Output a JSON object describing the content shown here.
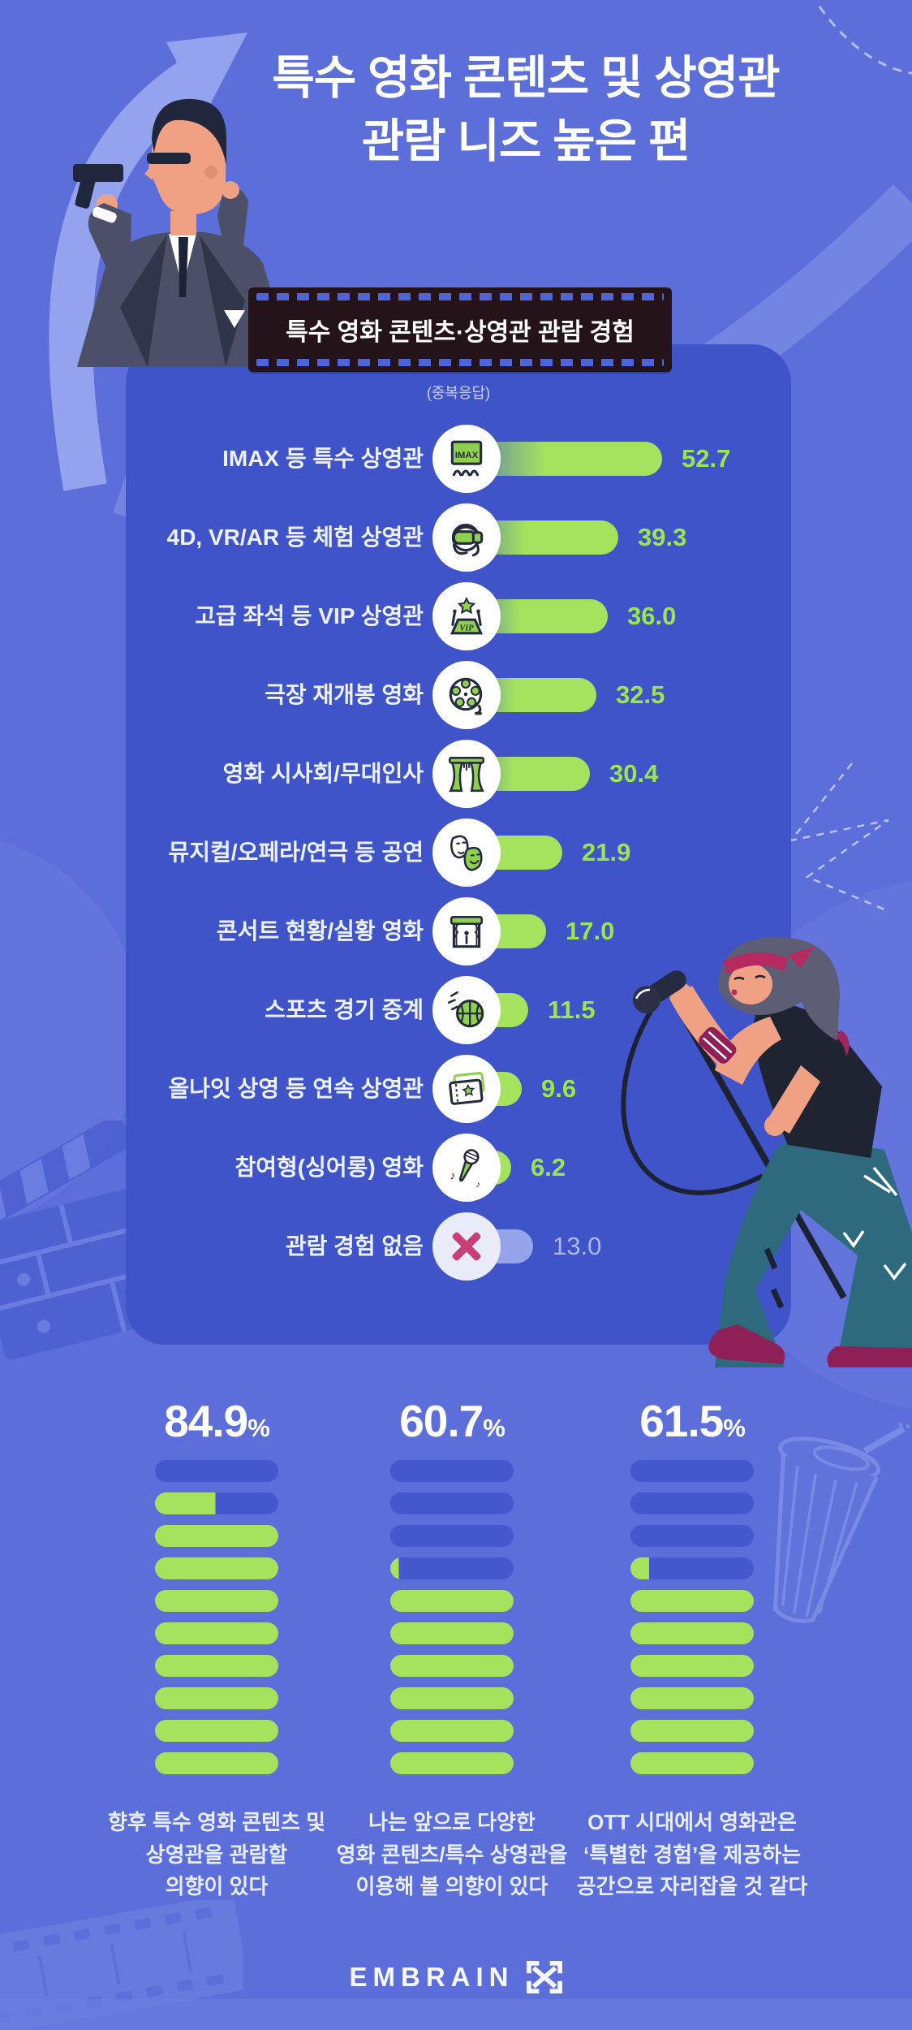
{
  "page": {
    "background": "#5b6ed9",
    "panel": "#3f54c9",
    "accent_green": "#a5e25e",
    "accent_green_text": "#9be64d",
    "pill_blue": "#4457cd",
    "magenta_x": "#c73f74",
    "badge_bg": "#241419"
  },
  "title": {
    "line1": "특수 영화 콘텐츠 및 상영관",
    "line2": "관람 니즈 높은 편"
  },
  "badge": {
    "label": "특수 영화 콘텐츠·상영관 관람 경험"
  },
  "note": "(중복응답)",
  "chart_data": [
    {
      "type": "bar",
      "orientation": "horizontal",
      "title": "특수 영화 콘텐츠·상영관 관람 경험",
      "note": "(중복응답)",
      "unit": "%",
      "xlim": [
        0,
        60
      ],
      "grid": false,
      "categories": [
        "IMAX 등 특수 상영관",
        "4D, VR/AR 등 체험 상영관",
        "고급 좌석 등 VIP 상영관",
        "극장 재개봉 영화",
        "영화 시사회/무대인사",
        "뮤지컬/오페라/연극 등 공연",
        "콘서트 현황/실황 영화",
        "스포츠 경기 중계",
        "올나잇 상영 등 연속 상영관",
        "참여형(싱어롱) 영화",
        "관람 경험 없음"
      ],
      "values": [
        52.7,
        39.3,
        36.0,
        32.5,
        30.4,
        21.9,
        17.0,
        11.5,
        9.6,
        6.2,
        13.0
      ],
      "displays": [
        "52.7",
        "39.3",
        "36.0",
        "32.5",
        "30.4",
        "21.9",
        "17.0",
        "11.5",
        "9.6",
        "6.2",
        "13.0"
      ],
      "icons": [
        "imax-screen-icon",
        "vr-headset-icon",
        "vip-seat-icon",
        "film-reel-icon",
        "stage-curtain-icon",
        "theater-masks-icon",
        "concert-stage-icon",
        "basketball-icon",
        "ticket-icon",
        "microphone-icon",
        "x-icon"
      ],
      "variants": [
        "green",
        "green",
        "green",
        "green",
        "green",
        "green",
        "green",
        "green",
        "green",
        "green",
        "muted"
      ]
    },
    {
      "type": "battery",
      "value": 84.9,
      "display": "84.9",
      "unit": "%",
      "segments": 10,
      "caption_lines": [
        "향후 특수 영화 콘텐츠 및",
        "상영관을 관람할",
        "의향이 있다"
      ]
    },
    {
      "type": "battery",
      "value": 60.7,
      "display": "60.7",
      "unit": "%",
      "segments": 10,
      "caption_lines": [
        "나는 앞으로 다양한",
        "영화 콘텐츠/특수 상영관을",
        "이용해 볼 의향이 있다"
      ]
    },
    {
      "type": "battery",
      "value": 61.5,
      "display": "61.5",
      "unit": "%",
      "segments": 10,
      "caption_lines": [
        "OTT 시대에서 영화관은",
        "‘특별한 경험’을 제공하는",
        "공간으로 자리잡을 것 같다"
      ]
    }
  ],
  "footer": {
    "brand": "EMBRAIN",
    "logo": "embrain-arrows-icon"
  }
}
